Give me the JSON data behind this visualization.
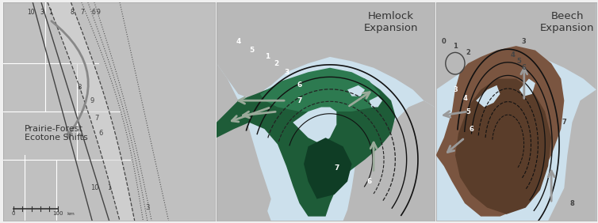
{
  "fig_width": 7.54,
  "fig_height": 2.82,
  "dpi": 100,
  "bg_outer": "#f0f0f0",
  "bg_white": "#ffffff",
  "water_color": "#cce0ec",
  "land_light": "#c8c8c8",
  "land_mid": "#b0b0b0",
  "land_dark": "#a0a0a0",
  "prairie_light": "#d0d0d0",
  "prairie_dark": "#b8b8b8",
  "hemlock_dark": "#1e5c38",
  "hemlock_mid": "#2d7a50",
  "hemlock_core": "#0f3d25",
  "beech_dark": "#5a3d2a",
  "beech_mid": "#7a5540",
  "beech_light": "#9a7060",
  "arrow_gray": "#9aaa9a",
  "arrow_beech": "#9a9a9a",
  "contour_dark": "#222222",
  "text_dark": "#333333",
  "title_hemlock": "Hemlock\nExpansion",
  "title_beech": "Beech\nExpansion",
  "label_prairie": "Prairie-Forest\nEcotone Shifts"
}
